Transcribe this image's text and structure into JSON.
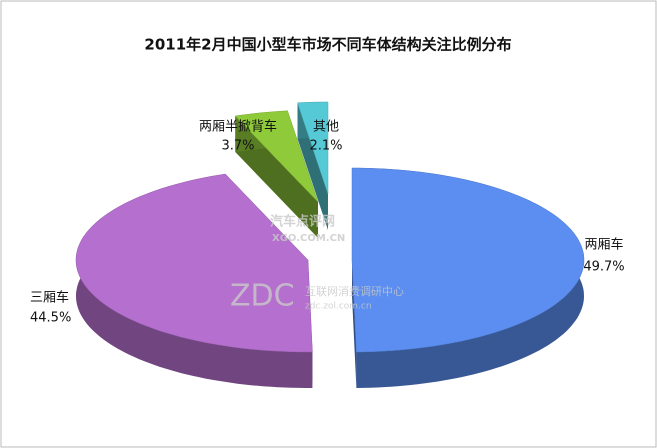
{
  "chart_data": {
    "type": "pie3d",
    "title": "2011年2月中国小型车市场不同车体结构关注比例分布",
    "categories": [
      "两厢车",
      "三厢车",
      "两厢半掀背车",
      "其他"
    ],
    "values": [
      49.7,
      44.5,
      3.7,
      2.1
    ],
    "value_labels": [
      "49.7%",
      "44.5%",
      "3.7%",
      "2.1%"
    ],
    "colors": [
      "#5b8ef0",
      "#b56fcf",
      "#8fca3a",
      "#55c9d6"
    ],
    "watermarks": [
      "汽车点评网",
      "XGO.COM.CN",
      "ZDC",
      "互联网消费调研中心",
      "zdc.zol.com.cn"
    ]
  }
}
